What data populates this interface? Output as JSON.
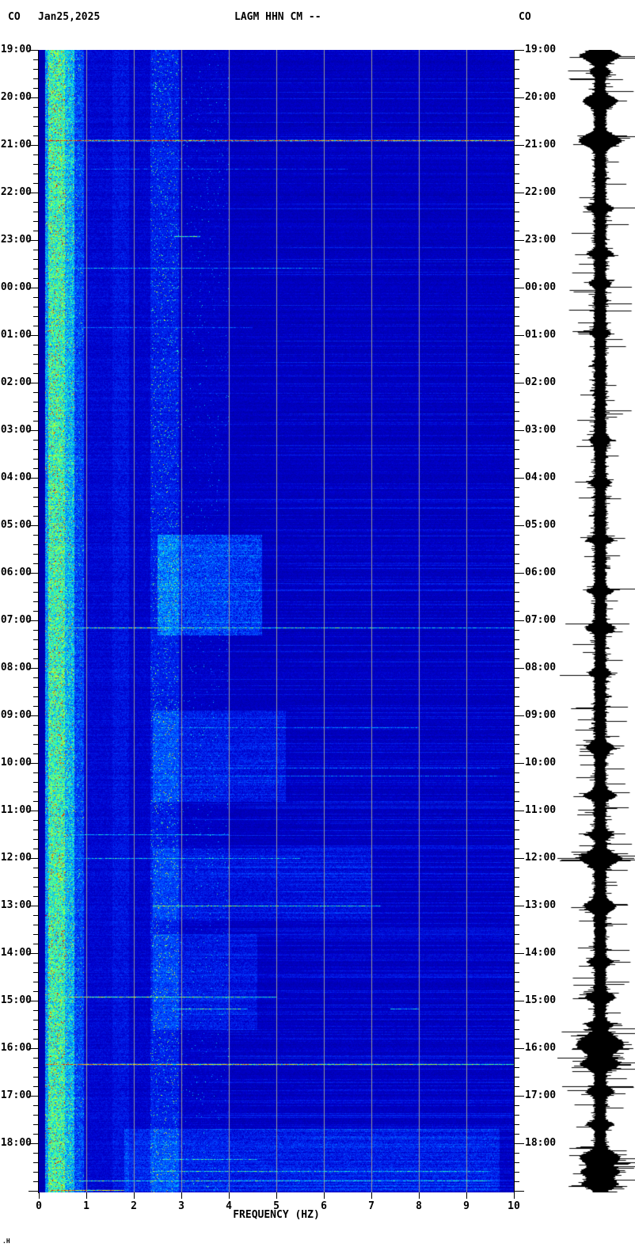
{
  "header": {
    "network_left": "CO",
    "date": "Jan25,2025",
    "title": "LAGM HHN CM --",
    "network_right": "CO"
  },
  "footer_mark": ".H",
  "chart_data": {
    "type": "heatmap",
    "subtype": "seismic-spectrogram-with-helicorder-trace",
    "station": "LAGM HHN CM --",
    "date": "Jan25,2025",
    "xlabel": "FREQUENCY (HZ)",
    "x_ticks": [
      "0",
      "1",
      "2",
      "3",
      "4",
      "5",
      "6",
      "7",
      "8",
      "9",
      "10"
    ],
    "x_range_hz": [
      0,
      10
    ],
    "y_ticks": [
      "19:00",
      "20:00",
      "21:00",
      "22:00",
      "23:00",
      "00:00",
      "01:00",
      "02:00",
      "03:00",
      "04:00",
      "05:00",
      "06:00",
      "07:00",
      "08:00",
      "09:00",
      "10:00",
      "11:00",
      "12:00",
      "13:00",
      "14:00",
      "15:00",
      "16:00",
      "17:00",
      "18:00"
    ],
    "y_minor_ticks_per_hour": 5,
    "time_span_hours": 24,
    "grid": {
      "color": "#999999",
      "lines_hz": [
        1,
        2,
        3,
        4,
        5,
        6,
        7,
        8,
        9
      ]
    },
    "render_seed": 20250125,
    "colormap": {
      "stops": [
        [
          0.0,
          0,
          0,
          120
        ],
        [
          0.1,
          0,
          0,
          160
        ],
        [
          0.22,
          0,
          0,
          205
        ],
        [
          0.35,
          0,
          60,
          255
        ],
        [
          0.5,
          0,
          180,
          255
        ],
        [
          0.6,
          40,
          255,
          190
        ],
        [
          0.7,
          150,
          255,
          70
        ],
        [
          0.8,
          255,
          255,
          0
        ],
        [
          0.88,
          255,
          140,
          0
        ],
        [
          1.0,
          225,
          0,
          0
        ]
      ]
    },
    "base_profile": [
      {
        "f0": 0.0,
        "f1": 0.13,
        "v": 0.14,
        "noise": 0.02
      },
      {
        "f0": 0.13,
        "f1": 0.2,
        "v": 0.46,
        "noise": 0.24,
        "speck": 0.05,
        "speckAmp": 0.3
      },
      {
        "f0": 0.2,
        "f1": 0.55,
        "v": 0.6,
        "noise": 0.26,
        "speck": 0.07,
        "speckAmp": 0.3
      },
      {
        "f0": 0.55,
        "f1": 0.75,
        "v": 0.5,
        "noise": 0.26,
        "speck": 0.05,
        "speckAmp": 0.28
      },
      {
        "f0": 0.75,
        "f1": 0.95,
        "v": 0.35,
        "noise": 0.2,
        "speck": 0.02,
        "speckAmp": 0.25
      },
      {
        "f0": 0.95,
        "f1": 1.55,
        "v": 0.225,
        "noise": 0.1
      },
      {
        "f0": 1.55,
        "f1": 1.9,
        "v": 0.26,
        "noise": 0.12
      },
      {
        "f0": 1.9,
        "f1": 2.35,
        "v": 0.215,
        "noise": 0.1
      },
      {
        "f0": 2.35,
        "f1": 2.95,
        "v": 0.285,
        "noise": 0.13,
        "speck": 0.04,
        "speckAmp": 0.28
      },
      {
        "f0": 2.95,
        "f1": 4.0,
        "v": 0.2,
        "noise": 0.1,
        "speck": 0.01,
        "speckAmp": 0.2
      },
      {
        "f0": 4.0,
        "f1": 10.0,
        "v": 0.18,
        "noise": 0.09
      }
    ],
    "patches": [
      {
        "t0": 10.2,
        "t1": 12.3,
        "f0": 2.5,
        "f1": 4.7,
        "boost": 0.16
      },
      {
        "t0": 13.9,
        "t1": 15.8,
        "f0": 2.4,
        "f1": 5.2,
        "boost": 0.09
      },
      {
        "t0": 16.8,
        "t1": 18.3,
        "f0": 2.4,
        "f1": 7.0,
        "boost": 0.07
      },
      {
        "t0": 18.6,
        "t1": 20.6,
        "f0": 2.4,
        "f1": 4.6,
        "boost": 0.08
      },
      {
        "t0": 22.7,
        "t1": 24.0,
        "f0": 1.8,
        "f1": 9.7,
        "boost": 0.1
      }
    ],
    "events": [
      {
        "t": 1.9,
        "f0": 0.15,
        "f1": 10.0,
        "amp": 1.0,
        "fade": 0.15,
        "hot": true,
        "label": "20:54 strong broadband event"
      },
      {
        "t": 2.5,
        "f0": 0.2,
        "f1": 6.5,
        "amp": 0.42,
        "fade": 0.1,
        "hot": false,
        "label": "21:30 weak event"
      },
      {
        "t": 3.92,
        "f0": 2.85,
        "f1": 3.4,
        "amp": 0.68,
        "fade": 0.0,
        "hot": false,
        "label": "22:55 narrowband burst"
      },
      {
        "t": 4.58,
        "f0": 0.5,
        "f1": 6.0,
        "amp": 0.52,
        "fade": 0.1,
        "hot": false,
        "label": "23:35 moderate event"
      },
      {
        "t": 5.83,
        "f0": 0.2,
        "f1": 4.5,
        "amp": 0.42,
        "fade": 0.05,
        "hot": false,
        "label": "00:50 weak event"
      },
      {
        "t": 12.15,
        "f0": 0.2,
        "f1": 10.0,
        "amp": 0.72,
        "fade": 0.22,
        "hot": false,
        "label": "07:09 moderate broadband event"
      },
      {
        "t": 14.25,
        "f0": 2.5,
        "f1": 8.0,
        "amp": 0.48,
        "fade": 0.05,
        "hot": false,
        "label": "09:15 weak event"
      },
      {
        "t": 15.1,
        "f0": 2.5,
        "f1": 9.7,
        "amp": 0.42,
        "fade": 0.05,
        "hot": false,
        "label": "10:06 faint streak"
      },
      {
        "t": 15.27,
        "f0": 2.5,
        "f1": 9.7,
        "amp": 0.45,
        "fade": 0.05,
        "hot": false,
        "label": "10:16 faint streak"
      },
      {
        "t": 16.5,
        "f0": 0.3,
        "f1": 4.0,
        "amp": 0.52,
        "fade": 0.05,
        "hot": false,
        "label": "11:30 moderate event"
      },
      {
        "t": 17.0,
        "f0": 0.3,
        "f1": 5.5,
        "amp": 0.58,
        "fade": 0.08,
        "hot": false,
        "label": "12:00 moderate event"
      },
      {
        "t": 18.0,
        "f0": 2.4,
        "f1": 7.2,
        "amp": 0.66,
        "fade": 0.08,
        "hot": false,
        "label": "13:00 moderate event"
      },
      {
        "t": 19.92,
        "f0": 0.5,
        "f1": 5.0,
        "amp": 0.78,
        "fade": 0.25,
        "hot": true,
        "label": "14:55 strong low-freq event"
      },
      {
        "t": 20.17,
        "f0": 2.8,
        "f1": 4.4,
        "amp": 0.62,
        "fade": 0.0,
        "hot": false,
        "label": "15:10 burst"
      },
      {
        "t": 20.17,
        "f0": 7.4,
        "f1": 8.0,
        "amp": 0.55,
        "fade": 0.0,
        "hot": false,
        "label": "15:10 burst high"
      },
      {
        "t": 21.33,
        "f0": 0.15,
        "f1": 10.0,
        "amp": 0.92,
        "fade": 0.3,
        "hot": true,
        "label": "16:20 strong broadband event"
      },
      {
        "t": 23.33,
        "f0": 2.6,
        "f1": 4.6,
        "amp": 0.58,
        "fade": 0.0,
        "hot": false,
        "label": "18:20 burst"
      },
      {
        "t": 23.58,
        "f0": 2.4,
        "f1": 9.5,
        "amp": 0.62,
        "fade": 0.1,
        "hot": false,
        "label": "18:35 burst"
      },
      {
        "t": 23.78,
        "f0": 0.4,
        "f1": 9.5,
        "amp": 0.62,
        "fade": 0.1,
        "hot": false,
        "label": "18:47 burst"
      },
      {
        "t": 23.98,
        "f0": 0.25,
        "f1": 1.8,
        "amp": 0.95,
        "fade": 0.2,
        "hot": true,
        "label": "bottom-edge hot streak"
      }
    ],
    "waveform": {
      "color": "#000000",
      "bursts": [
        {
          "t": 0.12,
          "a": 40,
          "w": 5
        },
        {
          "t": 0.45,
          "a": 14,
          "w": 3
        },
        {
          "t": 1.07,
          "a": 34,
          "w": 5
        },
        {
          "t": 1.9,
          "a": 44,
          "w": 6
        },
        {
          "t": 3.32,
          "a": 22,
          "w": 3
        },
        {
          "t": 4.28,
          "a": 22,
          "w": 3
        },
        {
          "t": 4.9,
          "a": 16,
          "w": 3
        },
        {
          "t": 5.95,
          "a": 13,
          "w": 3
        },
        {
          "t": 8.2,
          "a": 16,
          "w": 3
        },
        {
          "t": 9.1,
          "a": 14,
          "w": 3
        },
        {
          "t": 10.3,
          "a": 22,
          "w": 3
        },
        {
          "t": 11.37,
          "a": 20,
          "w": 3
        },
        {
          "t": 12.15,
          "a": 26,
          "w": 4
        },
        {
          "t": 13.1,
          "a": 16,
          "w": 3
        },
        {
          "t": 14.67,
          "a": 24,
          "w": 4
        },
        {
          "t": 15.67,
          "a": 30,
          "w": 4
        },
        {
          "t": 16.5,
          "a": 22,
          "w": 3
        },
        {
          "t": 17.0,
          "a": 44,
          "w": 6
        },
        {
          "t": 18.0,
          "a": 30,
          "w": 5
        },
        {
          "t": 19.17,
          "a": 20,
          "w": 3
        },
        {
          "t": 19.92,
          "a": 28,
          "w": 4
        },
        {
          "t": 20.5,
          "a": 22,
          "w": 3
        },
        {
          "t": 20.92,
          "a": 50,
          "w": 9
        },
        {
          "t": 21.33,
          "a": 40,
          "w": 5
        },
        {
          "t": 21.9,
          "a": 24,
          "w": 4
        },
        {
          "t": 22.6,
          "a": 22,
          "w": 3
        },
        {
          "t": 23.3,
          "a": 42,
          "w": 6
        },
        {
          "t": 23.6,
          "a": 38,
          "w": 5
        },
        {
          "t": 23.85,
          "a": 34,
          "w": 5
        }
      ]
    }
  }
}
